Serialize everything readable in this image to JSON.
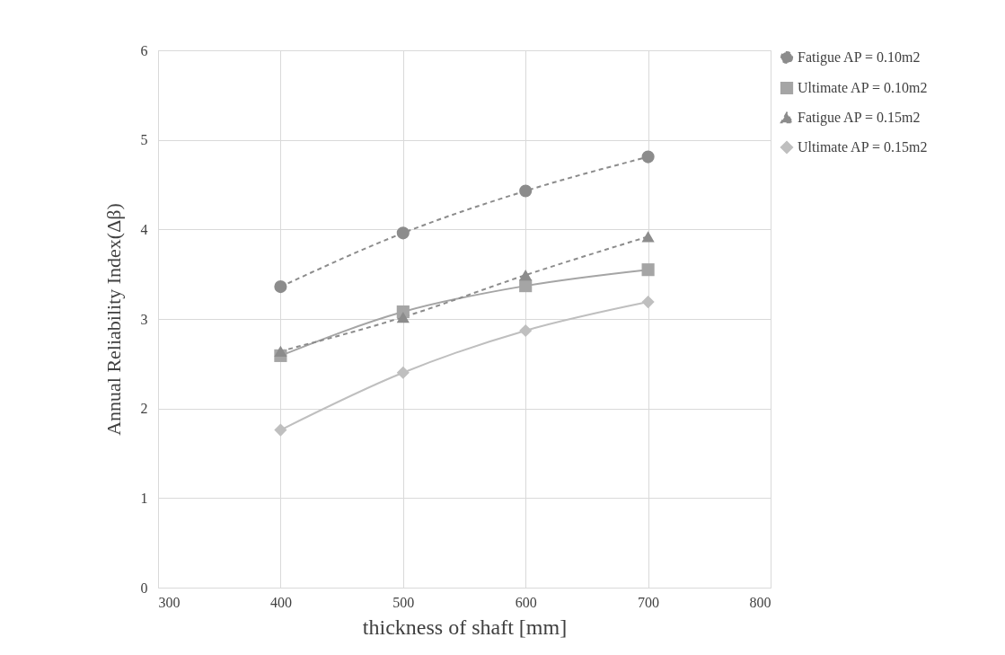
{
  "chart_data": {
    "type": "line",
    "xlabel": "thickness of shaft [mm]",
    "ylabel": "Annual Reliability Index(Δβ)",
    "x": [
      400,
      500,
      600,
      700
    ],
    "series": [
      {
        "name": "Fatigue AP = 0.10m2",
        "color": "#8c8c8c",
        "marker": "circle",
        "line_style": "dashed",
        "values": [
          3.36,
          3.96,
          4.43,
          4.81
        ]
      },
      {
        "name": "Ultimate AP = 0.10m2",
        "color": "#a5a5a5",
        "marker": "square",
        "line_style": "solid",
        "values": [
          2.59,
          3.08,
          3.37,
          3.55
        ]
      },
      {
        "name": "Fatigue AP = 0.15m2",
        "color": "#8c8c8c",
        "marker": "triangle",
        "line_style": "dashed",
        "values": [
          2.64,
          3.02,
          3.49,
          3.92
        ]
      },
      {
        "name": "Ultimate AP = 0.15m2",
        "color": "#bfbfbf",
        "marker": "diamond",
        "line_style": "solid",
        "values": [
          1.76,
          2.4,
          2.87,
          3.19
        ]
      }
    ],
    "xlim": [
      300,
      800
    ],
    "xticks": [
      300,
      400,
      500,
      600,
      700,
      800
    ],
    "ylim": [
      0,
      6
    ],
    "yticks": [
      0,
      1,
      2,
      3,
      4,
      5,
      6
    ],
    "grid": true,
    "legend": "right"
  }
}
